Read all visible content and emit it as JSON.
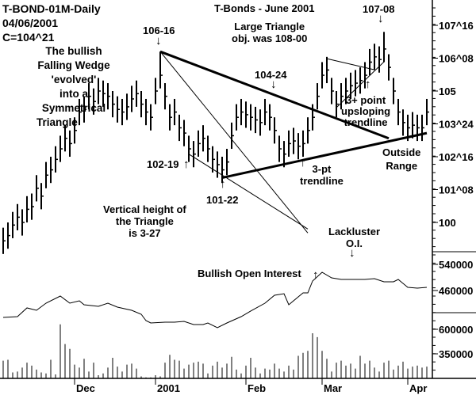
{
  "header": {
    "symbol": "T-BOND-01M-Daily",
    "date": "04/06/2001",
    "close": "C=104^21",
    "title": "T-Bonds - June 2001"
  },
  "annotations": {
    "wedge": [
      "The bullish",
      "Falling Wedge",
      "'evolved'",
      "into a",
      "Symmetrical",
      "Triangle"
    ],
    "high1": "106-16",
    "low1": "102-19",
    "low2": "101-22",
    "mid": "104-24",
    "high2": "107-08",
    "target": [
      "Large Triangle",
      "obj. was 108-00"
    ],
    "uptrend": [
      "3+ point",
      "upsloping",
      "trendline"
    ],
    "trend3": [
      "3-pt",
      "trendline"
    ],
    "outside": [
      "Outside",
      "Range"
    ],
    "height": [
      "Vertical height of",
      "the Triangle",
      "is 3-27"
    ],
    "oi_bull": "Bullish Open Interest",
    "oi_lack": [
      "Lackluster",
      "O.I."
    ],
    "up_arrow": "↑",
    "down_arrow": "↓"
  },
  "chart_data": {
    "type": "bar",
    "title": "T-Bonds - June 2001",
    "price_axis": {
      "ticks": [
        "107^16",
        "106^08",
        "105",
        "103^24",
        "102^16",
        "101^08",
        "100"
      ],
      "tick_values": [
        107.5,
        106.25,
        105,
        103.75,
        102.5,
        101.25,
        100
      ]
    },
    "oi_axis": {
      "ticks": [
        "540000",
        "460000"
      ],
      "tick_values": [
        540000,
        460000
      ]
    },
    "volume_axis": {
      "ticks": [
        "600000",
        "350000"
      ],
      "tick_values": [
        600000,
        350000
      ]
    },
    "x_labels": [
      "Dec",
      "2001",
      "Feb",
      "Mar",
      "Apr"
    ],
    "x_label_days": [
      15,
      32,
      51,
      67,
      85
    ],
    "price_mid": [
      99.3,
      99.5,
      99.9,
      100.2,
      100.0,
      100.5,
      100.6,
      101.3,
      101.0,
      101.8,
      102.0,
      102.4,
      102.8,
      103.2,
      103.0,
      103.5,
      104.2,
      104.3,
      104.8,
      104.6,
      105.0,
      104.9,
      104.8,
      104.5,
      104.3,
      104.2,
      104.4,
      104.7,
      104.9,
      104.5,
      104.2,
      104.0,
      105.0,
      105.6,
      104.8,
      104.0,
      104.2,
      103.6,
      103.4,
      102.8,
      102.6,
      103.0,
      103.2,
      102.8,
      102.4,
      102.2,
      102.0,
      102.3,
      103.3,
      104.0,
      104.2,
      104.1,
      104.0,
      103.9,
      103.8,
      104.2,
      104.0,
      103.5,
      102.8,
      102.6,
      103.0,
      103.1,
      102.9,
      103.0,
      103.5,
      104.0,
      104.8,
      105.6,
      105.8,
      105.0,
      104.5,
      104.8,
      105.0,
      105.2,
      105.3,
      105.4,
      105.6,
      106.1,
      106.3,
      106.2,
      106.6,
      105.9,
      105.0,
      104.2,
      103.8,
      103.6,
      103.7,
      103.6,
      103.6,
      104.2
    ],
    "price_range": 0.5,
    "oi_days": [
      0,
      3,
      5,
      7,
      9,
      12,
      14,
      16,
      17,
      20,
      22,
      24,
      27,
      29,
      30,
      31,
      34,
      36,
      38,
      40,
      42,
      43,
      45,
      47,
      50,
      52,
      55,
      57,
      59,
      60,
      63,
      64,
      65,
      67,
      69,
      71,
      73,
      76,
      78,
      80,
      82,
      83,
      85,
      87,
      89
    ],
    "oi_values": [
      377600,
      380000,
      406700,
      399400,
      421200,
      443000,
      421200,
      428500,
      416400,
      411500,
      421200,
      409100,
      399400,
      387300,
      367900,
      360600,
      363000,
      363000,
      365500,
      355800,
      355800,
      360600,
      346100,
      360600,
      380000,
      397000,
      421200,
      445500,
      450300,
      416400,
      452700,
      452700,
      489100,
      515800,
      498800,
      493900,
      493900,
      493900,
      496400,
      486700,
      486700,
      493900,
      469700,
      467300,
      469700
    ],
    "volume": [
      280000,
      290000,
      160000,
      170000,
      210000,
      260000,
      230000,
      190000,
      160000,
      150000,
      290000,
      140000,
      650000,
      450000,
      400000,
      240000,
      210000,
      300000,
      170000,
      260000,
      130000,
      150000,
      210000,
      310000,
      220000,
      170000,
      240000,
      250000,
      200000,
      120000,
      110000,
      110000,
      110000,
      120000,
      260000,
      340000,
      290000,
      280000,
      200000,
      240000,
      260000,
      270000,
      250000,
      150000,
      230000,
      270000,
      210000,
      250000,
      320000,
      190000,
      150000,
      230000,
      310000,
      210000,
      150000,
      200000,
      190000,
      250000,
      200000,
      170000,
      230000,
      190000,
      330000,
      360000,
      380000,
      560000,
      520000,
      380000,
      300000,
      170000,
      260000,
      280000,
      230000,
      250000,
      200000,
      330000,
      250000,
      280000,
      210000,
      170000,
      260000,
      280000,
      190000,
      230000,
      270000,
      200000,
      220000,
      230000,
      210000,
      220000
    ],
    "trendlines": [
      {
        "name": "triangle-upper",
        "from": [
          33,
          106.5
        ],
        "to": [
          81,
          103.2
        ],
        "weight": "heavy"
      },
      {
        "name": "triangle-lower",
        "from": [
          46,
          101.7
        ],
        "to": [
          89,
          103.4
        ],
        "weight": "heavy"
      },
      {
        "name": "wedge-upper",
        "from": [
          33,
          106.5
        ],
        "to": [
          64,
          99.6
        ],
        "weight": "thin"
      },
      {
        "name": "wedge-lower",
        "from": [
          39,
          102.6
        ],
        "to": [
          64,
          99.75
        ],
        "weight": "thin"
      },
      {
        "name": "flag-upper",
        "from": [
          68,
          106.23
        ],
        "to": [
          78,
          105.81
        ],
        "weight": "thin"
      },
      {
        "name": "flag-lower",
        "from": [
          70,
          104.37
        ],
        "to": [
          80,
          106.11
        ],
        "weight": "thin"
      }
    ]
  }
}
